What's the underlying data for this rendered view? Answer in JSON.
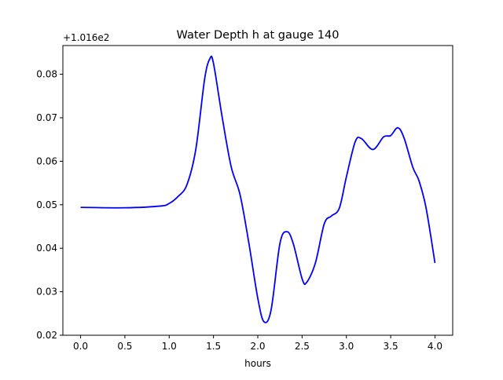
{
  "chart_data": {
    "type": "line",
    "title": "Water Depth h at gauge 140",
    "xlabel": "hours",
    "ylabel": "",
    "offset_label": "+1.016e2",
    "xlim": [
      -0.2,
      4.2
    ],
    "ylim": [
      0.02,
      0.0866
    ],
    "xticks": [
      0.0,
      0.5,
      1.0,
      1.5,
      2.0,
      2.5,
      3.0,
      3.5,
      4.0
    ],
    "xtick_labels": [
      "0.0",
      "0.5",
      "1.0",
      "1.5",
      "2.0",
      "2.5",
      "3.0",
      "3.5",
      "4.0"
    ],
    "yticks": [
      0.02,
      0.03,
      0.04,
      0.05,
      0.06,
      0.07,
      0.08
    ],
    "ytick_labels": [
      "0.02",
      "0.03",
      "0.04",
      "0.05",
      "0.06",
      "0.07",
      "0.08"
    ],
    "grid": false,
    "color": "#0000ff",
    "series": [
      {
        "name": "h",
        "x": [
          0.0,
          0.5,
          0.9,
          1.0,
          1.1,
          1.2,
          1.3,
          1.4,
          1.46,
          1.5,
          1.6,
          1.7,
          1.8,
          1.9,
          2.0,
          2.07,
          2.15,
          2.25,
          2.33,
          2.4,
          2.5,
          2.55,
          2.65,
          2.75,
          2.83,
          2.92,
          3.0,
          3.1,
          3.17,
          3.3,
          3.42,
          3.5,
          3.58,
          3.65,
          3.75,
          3.82,
          3.9,
          4.0
        ],
        "y": [
          0.0494,
          0.0493,
          0.0497,
          0.0503,
          0.0519,
          0.0546,
          0.0627,
          0.0789,
          0.0836,
          0.0825,
          0.0699,
          0.0587,
          0.0523,
          0.0411,
          0.0285,
          0.0231,
          0.0258,
          0.0411,
          0.0438,
          0.0411,
          0.033,
          0.0321,
          0.0366,
          0.0456,
          0.0474,
          0.0492,
          0.0564,
          0.0645,
          0.0652,
          0.0627,
          0.0656,
          0.0659,
          0.0677,
          0.0654,
          0.0586,
          0.0555,
          0.0492,
          0.0366
        ]
      }
    ]
  }
}
